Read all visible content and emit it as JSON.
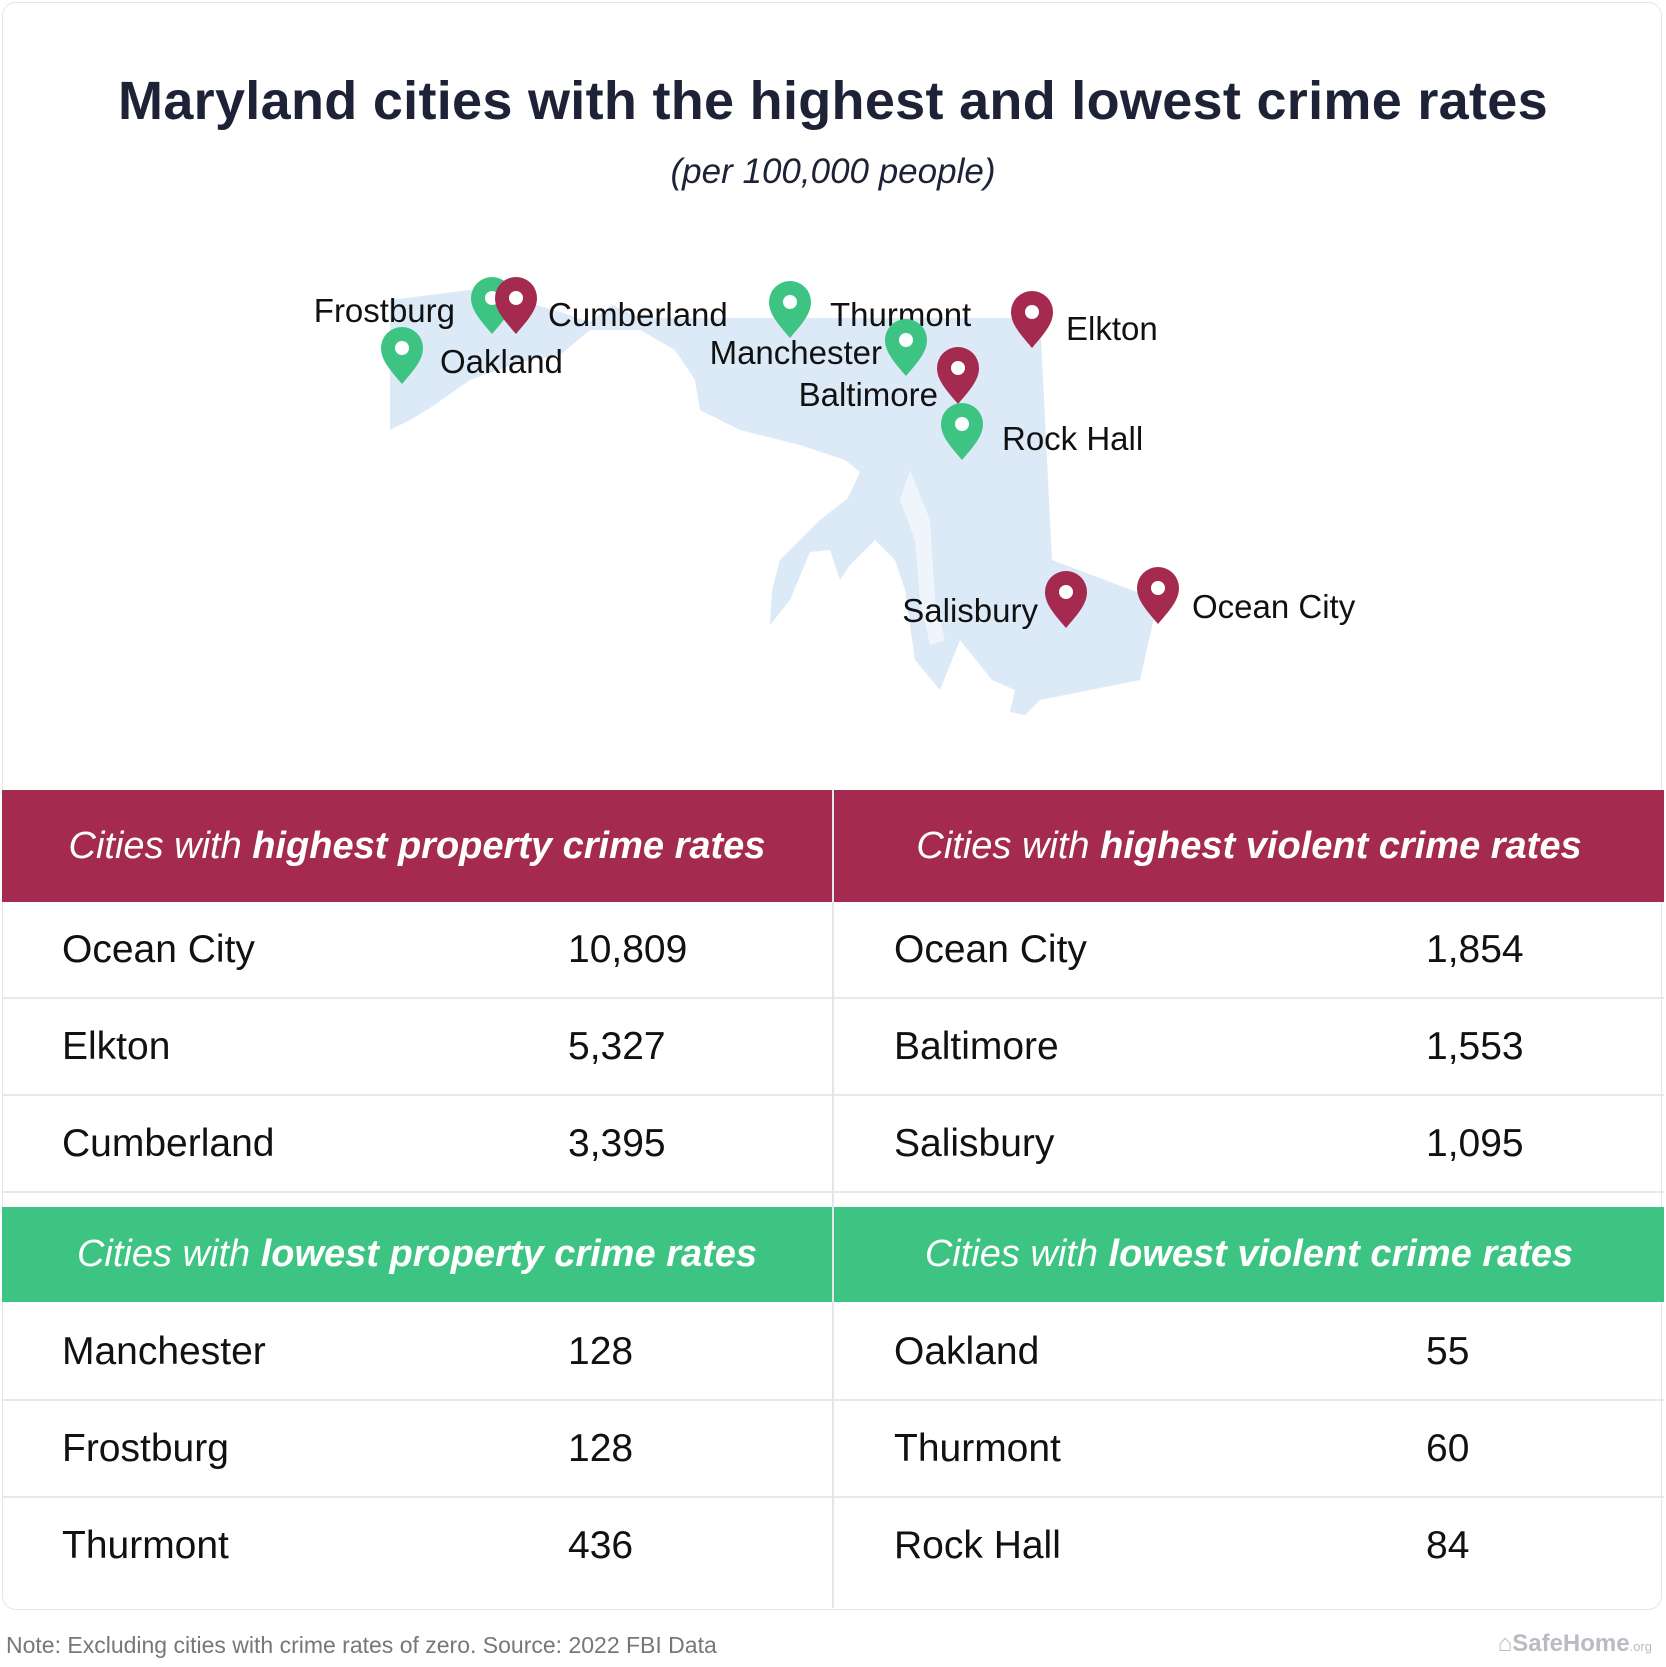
{
  "title": "Maryland cities with the highest and lowest crime rates",
  "subtitle": "(per 100,000 people)",
  "colors": {
    "high": "#a42a50",
    "low": "#3dc483",
    "land": "#dce9f7",
    "title_text": "#1e2237"
  },
  "map": {
    "pins": [
      {
        "city": "Frostburg",
        "category": "low"
      },
      {
        "city": "Cumberland",
        "category": "high"
      },
      {
        "city": "Oakland",
        "category": "low"
      },
      {
        "city": "Thurmont",
        "category": "low"
      },
      {
        "city": "Manchester",
        "category": "low"
      },
      {
        "city": "Elkton",
        "category": "high"
      },
      {
        "city": "Baltimore",
        "category": "high"
      },
      {
        "city": "Rock Hall",
        "category": "low"
      },
      {
        "city": "Salisbury",
        "category": "high"
      },
      {
        "city": "Ocean City",
        "category": "high"
      }
    ]
  },
  "tables": {
    "high_property": {
      "prefix": "Cities with ",
      "emphasis": "highest property crime rates",
      "rows": [
        {
          "city": "Ocean City",
          "value": "10,809"
        },
        {
          "city": "Elkton",
          "value": "5,327"
        },
        {
          "city": "Cumberland",
          "value": "3,395"
        }
      ]
    },
    "high_violent": {
      "prefix": "Cities with ",
      "emphasis": "highest violent crime rates",
      "rows": [
        {
          "city": "Ocean City",
          "value": "1,854"
        },
        {
          "city": "Baltimore",
          "value": "1,553"
        },
        {
          "city": "Salisbury",
          "value": "1,095"
        }
      ]
    },
    "low_property": {
      "prefix": "Cities with ",
      "emphasis": "lowest property crime rates",
      "rows": [
        {
          "city": "Manchester",
          "value": "128"
        },
        {
          "city": "Frostburg",
          "value": "128"
        },
        {
          "city": "Thurmont",
          "value": "436"
        }
      ]
    },
    "low_violent": {
      "prefix": "Cities with ",
      "emphasis": "lowest violent crime rates",
      "rows": [
        {
          "city": "Oakland",
          "value": "55"
        },
        {
          "city": "Thurmont",
          "value": "60"
        },
        {
          "city": "Rock Hall",
          "value": "84"
        }
      ]
    }
  },
  "note": "Note: Excluding cities with crime rates of zero. Source: 2022 FBI Data",
  "brand": {
    "name": "SafeHome",
    "suffix": ".org"
  }
}
